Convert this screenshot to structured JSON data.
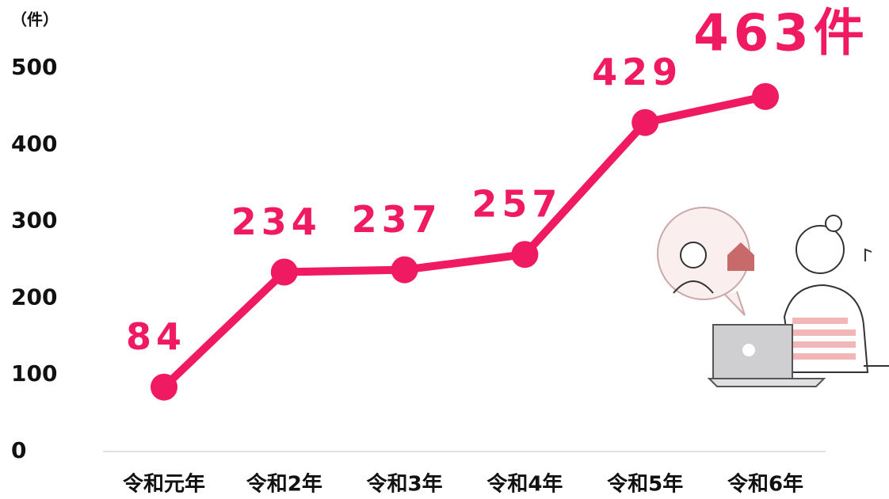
{
  "chart_data": {
    "type": "line",
    "y_unit_label": "（件）",
    "categories": [
      "令和元年",
      "令和2年",
      "令和3年",
      "令和4年",
      "令和5年",
      "令和6年"
    ],
    "values": [
      84,
      234,
      237,
      257,
      429,
      463
    ],
    "value_labels": [
      "84",
      "234",
      "237",
      "257",
      "429",
      "463件"
    ],
    "color": "#f01a62",
    "ylim": [
      0,
      500
    ],
    "yticks": [
      0,
      100,
      200,
      300,
      400,
      500
    ]
  }
}
